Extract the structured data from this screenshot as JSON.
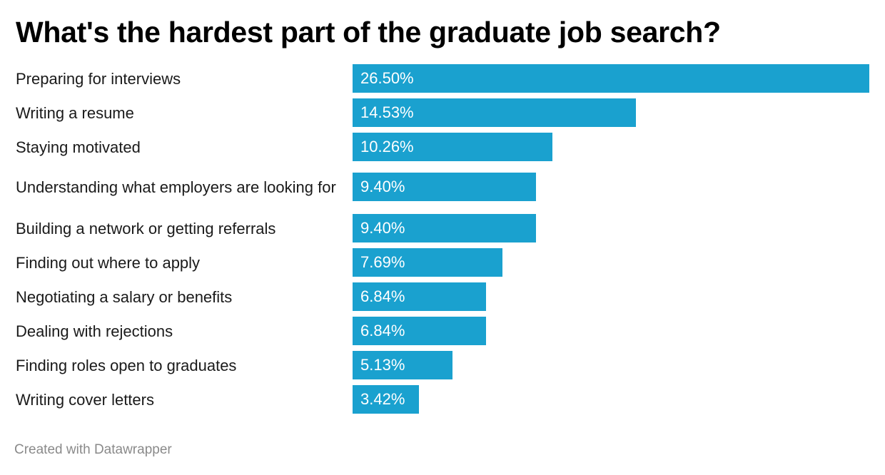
{
  "title": "What's the hardest part of the graduate job search?",
  "credit": "Created with Datawrapper",
  "colors": {
    "bar": "#1aa1cf",
    "value_text": "#ffffff",
    "title": "#000000",
    "credit": "#8a8a8a"
  },
  "chart_data": {
    "type": "bar",
    "orientation": "horizontal",
    "title": "What's the hardest part of the graduate job search?",
    "xlabel": "",
    "ylabel": "",
    "unit": "%",
    "xlim": [
      0,
      26.5
    ],
    "grid": false,
    "legend": "none",
    "categories": [
      "Preparing for interviews",
      "Writing a resume",
      "Staying motivated",
      "Understanding what employers are looking for",
      "Building a network or getting referrals",
      "Finding out where to apply",
      "Negotiating a salary or benefits",
      "Dealing with rejections",
      "Finding roles open to graduates",
      "Writing cover letters"
    ],
    "values": [
      26.5,
      14.53,
      10.26,
      9.4,
      9.4,
      7.69,
      6.84,
      6.84,
      5.13,
      3.42
    ],
    "value_labels": [
      "26.50%",
      "14.53%",
      "10.26%",
      "9.40%",
      "9.40%",
      "7.69%",
      "6.84%",
      "6.84%",
      "5.13%",
      "3.42%"
    ]
  }
}
